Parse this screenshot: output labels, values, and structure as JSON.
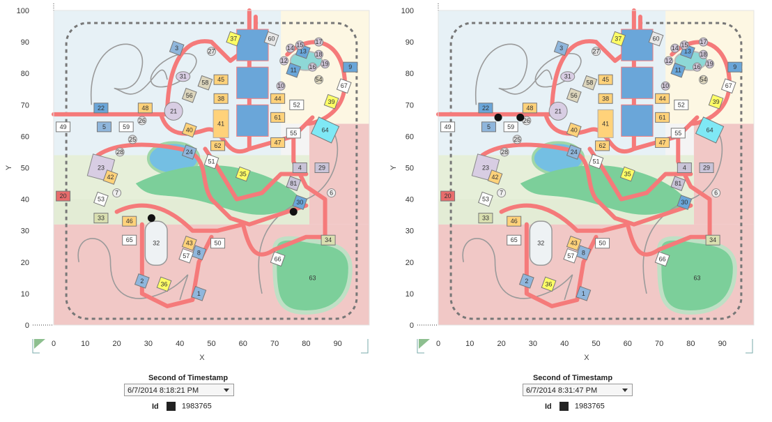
{
  "colors": {
    "path": "#f57a7a",
    "zone_blue": "#e7f1f6",
    "zone_cream": "#fdf7e3",
    "zone_green": "#e6efd9",
    "zone_red": "#f1c8c6",
    "pond": "#74bfe3",
    "lawn": "#7ccf9a",
    "point": "#111111"
  },
  "panels": [
    {
      "title": "Second of Timestamp",
      "timestamp": "6/7/2014 8:18:21 PM",
      "legend_label": "Id",
      "legend_value": "1983765",
      "chart_data": {
        "type": "scatter",
        "xlabel": "X",
        "ylabel": "Y",
        "xlim": [
          0,
          100
        ],
        "ylim": [
          0,
          100
        ],
        "x_ticks": [
          "0",
          "10",
          "20",
          "30",
          "40",
          "50",
          "60",
          "70",
          "80",
          "90"
        ],
        "y_ticks": [
          "0",
          "10",
          "20",
          "30",
          "40",
          "50",
          "60",
          "70",
          "80",
          "90",
          "100"
        ],
        "background": "park map",
        "points": [
          {
            "x": 31,
            "y": 34
          },
          {
            "x": 76,
            "y": 36
          }
        ]
      }
    },
    {
      "title": "Second of Timestamp",
      "timestamp": "6/7/2014 8:31:47 PM",
      "legend_label": "Id",
      "legend_value": "1983765",
      "chart_data": {
        "type": "scatter",
        "xlabel": "X",
        "ylabel": "Y",
        "xlim": [
          0,
          100
        ],
        "ylim": [
          0,
          100
        ],
        "x_ticks": [
          "0",
          "10",
          "20",
          "30",
          "40",
          "50",
          "60",
          "70",
          "80",
          "90"
        ],
        "y_ticks": [
          "0",
          "10",
          "20",
          "30",
          "40",
          "50",
          "60",
          "70",
          "80",
          "90",
          "100"
        ],
        "background": "park map",
        "points": [
          {
            "x": 19,
            "y": 66
          },
          {
            "x": 26,
            "y": 66
          }
        ]
      }
    }
  ],
  "map_labels": [
    "1",
    "2",
    "3",
    "4",
    "5",
    "6",
    "7",
    "8",
    "9",
    "10",
    "11",
    "12",
    "13",
    "14",
    "15",
    "16",
    "17",
    "18",
    "19",
    "20",
    "21",
    "22",
    "23",
    "24",
    "25",
    "26",
    "27",
    "28",
    "29",
    "30",
    "31",
    "32",
    "33",
    "34",
    "35",
    "36",
    "37",
    "38",
    "39",
    "40",
    "41",
    "42",
    "43",
    "44",
    "45",
    "46",
    "47",
    "48",
    "49",
    "50",
    "51",
    "52",
    "53",
    "54",
    "55",
    "56",
    "57",
    "58",
    "59",
    "60",
    "61",
    "62",
    "63",
    "64",
    "65",
    "66",
    "67",
    "81"
  ]
}
